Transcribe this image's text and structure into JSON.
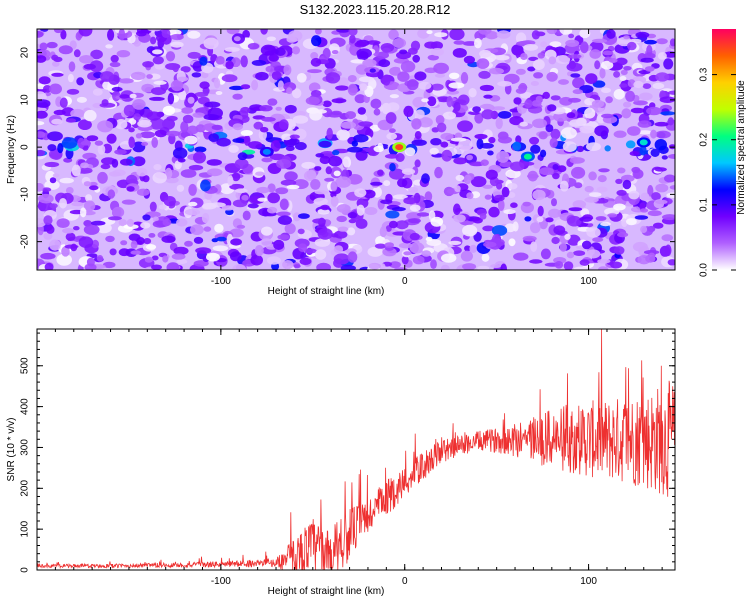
{
  "figure": {
    "title": "S132.2023.115.20.28.R12"
  },
  "chart_data": [
    {
      "type": "heatmap",
      "xlabel": "Height of straight line (km)",
      "ylabel": "Frequency (Hz)",
      "xlim": [
        -200,
        147
      ],
      "ylim": [
        -26,
        25
      ],
      "xticks": [
        -100,
        0,
        100
      ],
      "yticks": [
        -20,
        -10,
        0,
        10,
        20
      ],
      "colorbar": {
        "label": "Normalized spectral amplitude",
        "range": [
          0,
          0.37
        ],
        "ticks": [
          0.0,
          0.1,
          0.2,
          0.3
        ],
        "colormap": [
          "#ffffff",
          "#b060ff",
          "#7000ff",
          "#0000ff",
          "#00c8ff",
          "#00ff80",
          "#c0ff00",
          "#ffd000",
          "#ff6000",
          "#ff0060"
        ]
      },
      "description_points": [
        {
          "x": -3,
          "y": 0,
          "value": 0.34
        },
        {
          "x": 67,
          "y": -2,
          "value": 0.2
        },
        {
          "x": 130,
          "y": 1,
          "value": 0.18
        },
        {
          "x": -75,
          "y": -1,
          "value": 0.15
        }
      ],
      "grid": false
    },
    {
      "type": "line",
      "xlabel": "Height of straight line (km)",
      "ylabel": "SNR (10 * v/v)",
      "xlim": [
        -200,
        147
      ],
      "ylim": [
        0,
        590
      ],
      "xticks": [
        -100,
        0,
        100
      ],
      "yticks": [
        0,
        100,
        200,
        300,
        400,
        500
      ],
      "series": [
        {
          "color": "#ee3030",
          "envelope": {
            "x": [
              -200,
              -160,
              -120,
              -90,
              -70,
              -65,
              -50,
              -40,
              -35,
              -30,
              -20,
              -10,
              0,
              10,
              20,
              30,
              40,
              50,
              60,
              70,
              80,
              90,
              100,
              110,
              120,
              130,
              140,
              147
            ],
            "base": [
              10,
              10,
              12,
              15,
              18,
              25,
              60,
              40,
              70,
              90,
              130,
              175,
              215,
              255,
              290,
              305,
              315,
              318,
              320,
              322,
              320,
              322,
              320,
              318,
              320,
              318,
              320,
              318
            ],
            "spread": [
              4,
              5,
              6,
              8,
              10,
              30,
              70,
              50,
              90,
              60,
              50,
              45,
              40,
              35,
              30,
              25,
              25,
              30,
              45,
              60,
              75,
              85,
              95,
              100,
              110,
              120,
              140,
              150
            ]
          }
        }
      ],
      "grid": false
    }
  ]
}
